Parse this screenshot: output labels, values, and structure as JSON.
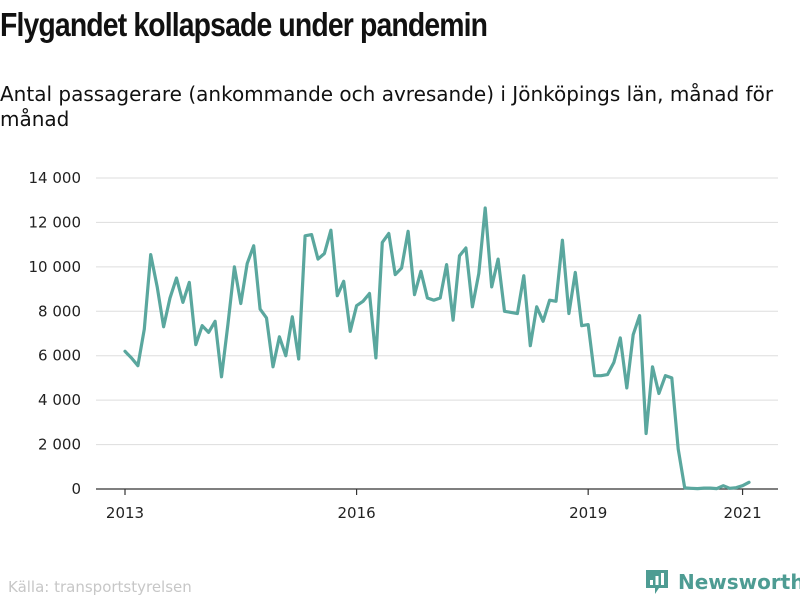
{
  "header": {
    "title": "Flygandet kollapsade under pandemin",
    "subtitle": "Antal passagerare (ankommande och avresande) i Jönköpings län, månad för månad"
  },
  "footer": {
    "source": "Källa: transportstyrelsen",
    "brand": "Newsworthy"
  },
  "colors": {
    "line": "#5aa79e",
    "grid": "#dddddd",
    "axis": "#333333",
    "brand": "#4e9c93"
  },
  "icons": {
    "logo": "newsworthy-logo-icon"
  },
  "chart_data": {
    "type": "line",
    "title": "",
    "xlabel": "",
    "ylabel": "",
    "x_start": "2013-01",
    "x_end": "2021-02",
    "x_ticks": [
      {
        "label": "2013",
        "date": "2013-01"
      },
      {
        "label": "2016",
        "date": "2016-01"
      },
      {
        "label": "2019",
        "date": "2019-01"
      },
      {
        "label": "2021",
        "date": "2021-01"
      }
    ],
    "ylim": [
      0,
      14000
    ],
    "y_ticks": [
      {
        "value": 0,
        "label": "0"
      },
      {
        "value": 2000,
        "label": "2 000"
      },
      {
        "value": 4000,
        "label": "4 000"
      },
      {
        "value": 6000,
        "label": "6 000"
      },
      {
        "value": 8000,
        "label": "8 000"
      },
      {
        "value": 10000,
        "label": "10 000"
      },
      {
        "value": 12000,
        "label": "12 000"
      },
      {
        "value": 14000,
        "label": "14 000"
      }
    ],
    "grid": true,
    "series": [
      {
        "name": "",
        "x": [
          "2013-01",
          "2013-02",
          "2013-03",
          "2013-04",
          "2013-05",
          "2013-06",
          "2013-07",
          "2013-08",
          "2013-09",
          "2013-10",
          "2013-11",
          "2013-12",
          "2014-01",
          "2014-02",
          "2014-03",
          "2014-04",
          "2014-05",
          "2014-06",
          "2014-07",
          "2014-08",
          "2014-09",
          "2014-10",
          "2014-11",
          "2014-12",
          "2015-01",
          "2015-02",
          "2015-03",
          "2015-04",
          "2015-05",
          "2015-06",
          "2015-07",
          "2015-08",
          "2015-09",
          "2015-10",
          "2015-11",
          "2015-12",
          "2016-01",
          "2016-02",
          "2016-03",
          "2016-04",
          "2016-05",
          "2016-06",
          "2016-07",
          "2016-08",
          "2016-09",
          "2016-10",
          "2016-11",
          "2016-12",
          "2017-01",
          "2017-02",
          "2017-03",
          "2017-04",
          "2017-05",
          "2017-06",
          "2017-07",
          "2017-08",
          "2017-09",
          "2017-10",
          "2017-11",
          "2017-12",
          "2018-01",
          "2018-02",
          "2018-03",
          "2018-04",
          "2018-05",
          "2018-06",
          "2018-07",
          "2018-08",
          "2018-09",
          "2018-10",
          "2018-11",
          "2018-12",
          "2019-01",
          "2019-02",
          "2019-03",
          "2019-04",
          "2019-05",
          "2019-06",
          "2019-07",
          "2019-08",
          "2019-09",
          "2019-10",
          "2019-11",
          "2019-12",
          "2020-01",
          "2020-02",
          "2020-03",
          "2020-04",
          "2020-05",
          "2020-06",
          "2020-07",
          "2020-08",
          "2020-09",
          "2020-10",
          "2020-11",
          "2020-12",
          "2021-01",
          "2021-02"
        ],
        "values": [
          6200,
          5900,
          5550,
          7200,
          10550,
          9100,
          7300,
          8600,
          9500,
          8400,
          9300,
          6500,
          7350,
          7050,
          7550,
          5050,
          7400,
          10000,
          8350,
          10150,
          10950,
          8100,
          7700,
          5500,
          6850,
          6000,
          7750,
          5850,
          11400,
          11450,
          10350,
          10600,
          11650,
          8700,
          9350,
          7100,
          8250,
          8450,
          8800,
          5900,
          11100,
          11500,
          9650,
          9950,
          11600,
          8750,
          9800,
          8600,
          8500,
          8600,
          10100,
          7600,
          10500,
          10850,
          8200,
          9700,
          12650,
          9100,
          10350,
          8000,
          7950,
          7900,
          9600,
          6450,
          8200,
          7550,
          8500,
          8450,
          11200,
          7900,
          9750,
          7350,
          7400,
          5100,
          5100,
          5150,
          5700,
          6800,
          4550,
          6950,
          7800,
          2500,
          5500,
          4300,
          5100,
          5000,
          1800,
          50,
          30,
          20,
          40,
          40,
          20,
          150,
          30,
          60,
          150,
          300
        ]
      }
    ]
  }
}
